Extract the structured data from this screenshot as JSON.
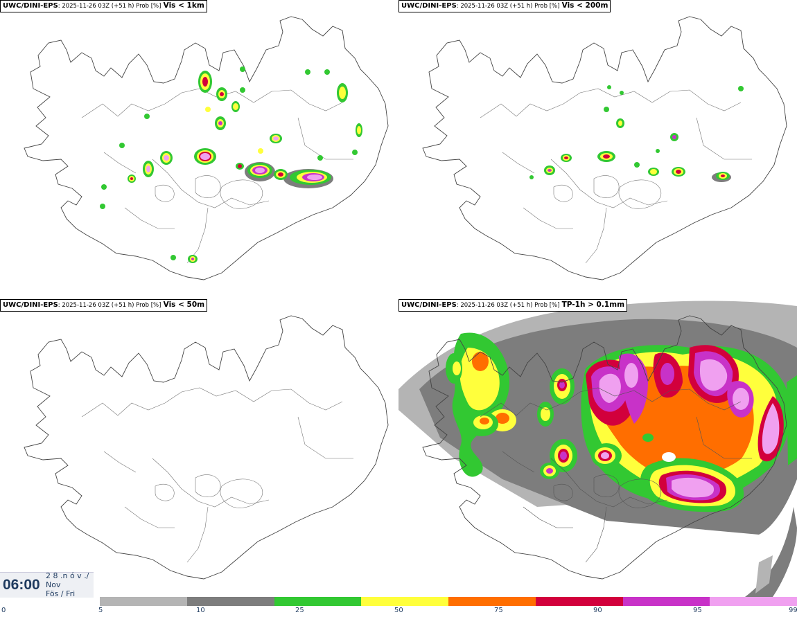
{
  "panels": [
    {
      "model": "UWC/DINI-EPS",
      "meta": ": 2025-11-26 03Z (+51 h) Prob [%]",
      "param": "Vis < 1km"
    },
    {
      "model": "UWC/DINI-EPS",
      "meta": ": 2025-11-26 03Z (+51 h) Prob [%]",
      "param": "Vis < 200m"
    },
    {
      "model": "UWC/DINI-EPS",
      "meta": ": 2025-11-26 03Z (+51 h) Prob [%]",
      "param": "Vis < 50m"
    },
    {
      "model": "UWC/DINI-EPS",
      "meta": ": 2025-11-26 03Z (+51 h) Prob [%]",
      "param": "TP-1h > 0.1mm"
    }
  ],
  "valid_time": {
    "time": "06:00",
    "line1": "2 8 .n ó v ./",
    "line2": "Nov",
    "line3": "Fös / Fri"
  },
  "legend": {
    "ticks": [
      "0",
      "5",
      "10",
      "25",
      "50",
      "75",
      "90",
      "95",
      "99"
    ],
    "colors": [
      "#b4b4b4",
      "#7d7d7d",
      "#32c832",
      "#ffff3c",
      "#ff6e00",
      "#d2003c",
      "#c832c8",
      "#f0a0f0"
    ]
  }
}
